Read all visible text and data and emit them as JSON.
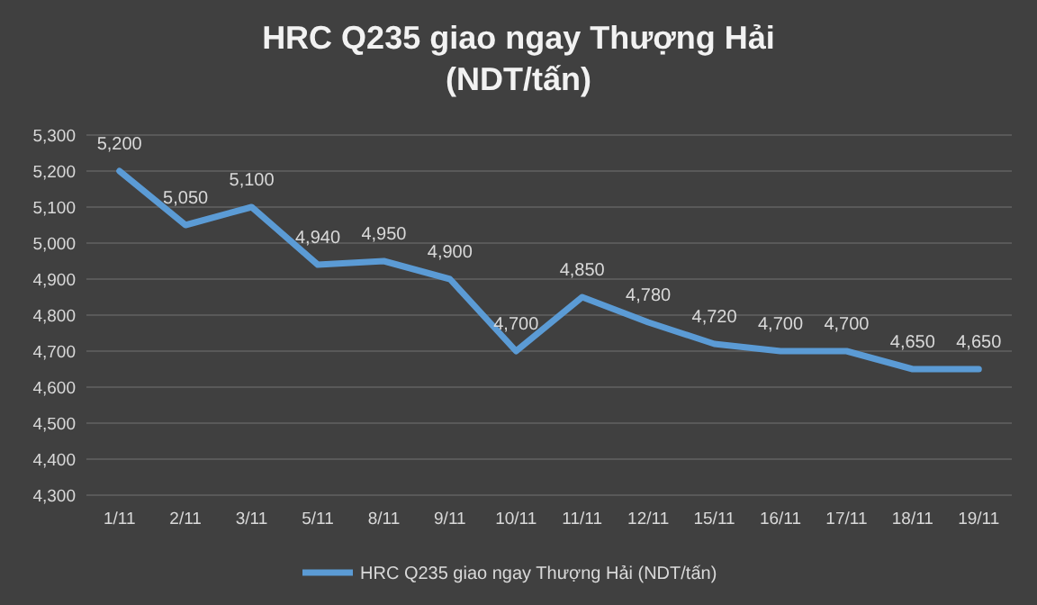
{
  "chart_data": {
    "type": "line",
    "title": "HRC Q235 giao ngay Thượng Hải (NDT/tấn)",
    "categories": [
      "1/11",
      "2/11",
      "3/11",
      "5/11",
      "8/11",
      "9/11",
      "10/11",
      "11/11",
      "12/11",
      "15/11",
      "16/11",
      "17/11",
      "18/11",
      "19/11"
    ],
    "series": [
      {
        "name": "HRC Q235 giao ngay Thượng Hải (NDT/tấn)",
        "color": "#5b9bd5",
        "values": [
          5200,
          5050,
          5100,
          4940,
          4950,
          4900,
          4700,
          4850,
          4780,
          4720,
          4700,
          4700,
          4650,
          4650
        ],
        "value_labels": [
          "5,200",
          "5,050",
          "5,100",
          "4,940",
          "4,950",
          "4,900",
          "4,700",
          "4,850",
          "4,780",
          "4,720",
          "4,700",
          "4,700",
          "4,650",
          "4,650"
        ]
      }
    ],
    "ylim": [
      4300,
      5300
    ],
    "yticks": [
      {
        "value": 4300,
        "label": "4,300"
      },
      {
        "value": 4400,
        "label": "4,400"
      },
      {
        "value": 4500,
        "label": "4,500"
      },
      {
        "value": 4600,
        "label": "4,600"
      },
      {
        "value": 4700,
        "label": "4,700"
      },
      {
        "value": 4800,
        "label": "4,800"
      },
      {
        "value": 4900,
        "label": "4,900"
      },
      {
        "value": 5000,
        "label": "5,000"
      },
      {
        "value": 5100,
        "label": "5,100"
      },
      {
        "value": 5200,
        "label": "5,200"
      },
      {
        "value": 5300,
        "label": "5,300"
      }
    ],
    "grid": "y",
    "legend": "bottom",
    "marker": "none",
    "line_style": "solid"
  }
}
